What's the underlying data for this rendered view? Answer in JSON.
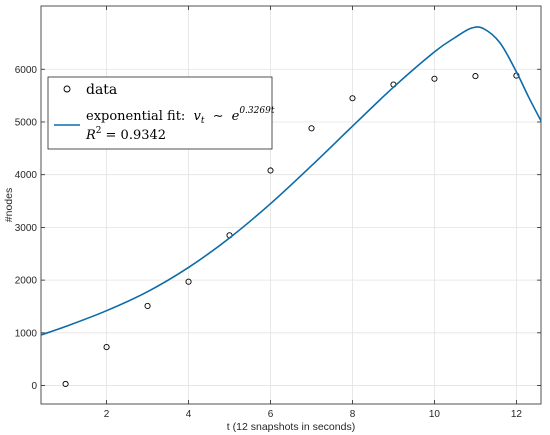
{
  "chart_data": {
    "type": "scatter",
    "xlabel": "t (12 snapshots in seconds)",
    "ylabel": "#nodes",
    "xlim": [
      0.4,
      12.6
    ],
    "ylim": [
      -350,
      7200
    ],
    "x_ticks": [
      2,
      4,
      6,
      8,
      10,
      12
    ],
    "y_ticks": [
      0,
      1000,
      2000,
      3000,
      4000,
      5000,
      6000
    ],
    "grid": true,
    "legend_position": "top-left",
    "series": [
      {
        "name": "data",
        "kind": "markers",
        "marker": "circle-open",
        "color": "#000000",
        "x": [
          1,
          2,
          3,
          4,
          5,
          6,
          7,
          8,
          9,
          10,
          11,
          12
        ],
        "y": [
          30,
          730,
          1510,
          1970,
          2850,
          4080,
          4880,
          5450,
          5710,
          5820,
          5870,
          5880
        ]
      },
      {
        "name": "exponential fit",
        "kind": "line",
        "color": "#0b6ba8",
        "x": [
          0.4,
          1,
          2,
          3,
          4,
          5,
          6,
          7,
          8,
          9,
          10,
          10.5,
          10.9,
          11.2,
          11.6,
          12,
          12.3,
          12.6
        ],
        "y": [
          960,
          1120,
          1420,
          1780,
          2240,
          2800,
          3450,
          4170,
          4920,
          5660,
          6330,
          6600,
          6780,
          6770,
          6500,
          5950,
          5470,
          5020
        ]
      }
    ],
    "legend": {
      "data_label": "data",
      "fit_label": "exponential fit:",
      "fit_formula_lhs": "v",
      "fit_formula_sub": "t",
      "fit_formula_rel": "∼",
      "fit_formula_base": "e",
      "fit_formula_exp": "0.3269t",
      "r2_var": "R",
      "r2_sup": "2",
      "r2_value": "= 0.9342"
    }
  }
}
